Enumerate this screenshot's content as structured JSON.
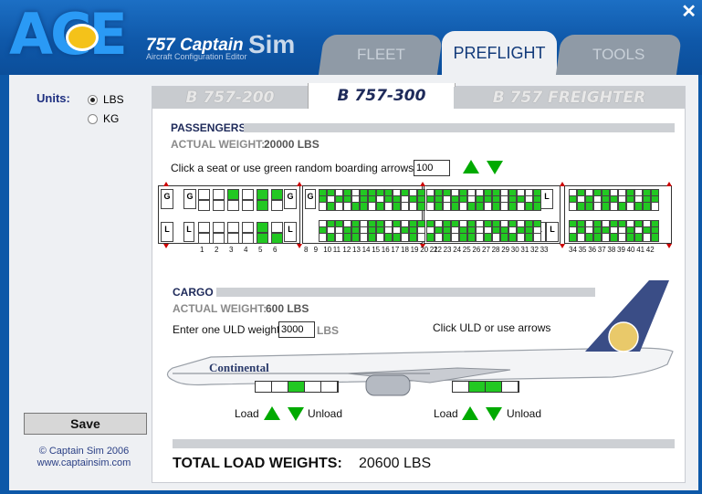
{
  "header": {
    "logo_text": "ACE",
    "brand_prefix": "757",
    "brand_name": "Captain",
    "brand_sim": "Sim",
    "brand_sub": "Aircraft Configuration Editor",
    "close": "✕"
  },
  "tabs": [
    {
      "label": "FLEET",
      "active": false
    },
    {
      "label": "PREFLIGHT",
      "active": true
    },
    {
      "label": "TOOLS",
      "active": false
    }
  ],
  "units": {
    "label": "Units:",
    "options": [
      {
        "label": "LBS",
        "selected": true
      },
      {
        "label": "KG",
        "selected": false
      }
    ]
  },
  "save_label": "Save",
  "copyright": "© Captain Sim 2006",
  "website": "www.captainsim.com",
  "model_tabs": [
    {
      "label": "B 757-200",
      "active": false
    },
    {
      "label": "B 757-300",
      "active": true
    },
    {
      "label": "B 757 FREIGHTER",
      "active": false
    }
  ],
  "passengers": {
    "title": "PASSENGERS",
    "weight_label": "ACTUAL WEIGHT:",
    "weight_value": "20000 LBS",
    "instruction": "Click a seat or use green random boarding arrows",
    "count": "100",
    "row_numbers_first": [
      "1",
      "2",
      "3",
      "4",
      "5",
      "6"
    ],
    "row_numbers_second": [
      "8",
      "9",
      "10",
      "11",
      "12",
      "13",
      "14",
      "15",
      "16",
      "17",
      "18",
      "19",
      "20",
      "21"
    ],
    "row_numbers_third": [
      "22",
      "23",
      "24",
      "25",
      "26",
      "27",
      "28",
      "29",
      "30",
      "31",
      "32",
      "33"
    ],
    "row_numbers_fourth": [
      "34",
      "35",
      "36",
      "37",
      "38",
      "39",
      "40",
      "41",
      "42"
    ],
    "galley_g": "G",
    "galley_l": "L"
  },
  "cargo": {
    "title": "CARGO",
    "weight_label": "ACTUAL WEIGHT:",
    "weight_value": "600 LBS",
    "uld_label": "Enter one ULD weight",
    "uld_value": "3000",
    "uld_unit": "LBS",
    "hint": "Click ULD or use arrows",
    "airline": "Continental",
    "fwd_hold": [
      0,
      0,
      1,
      0,
      0
    ],
    "aft_hold": [
      0,
      1,
      1,
      0
    ],
    "load_label": "Load",
    "unload_label": "Unload"
  },
  "total": {
    "label": "TOTAL LOAD WEIGHTS:",
    "value": "20600 LBS"
  },
  "colors": {
    "accent_blue": "#0d58a8",
    "seat_filled": "#22c822",
    "arrow_green": "#00aa00",
    "marker_red": "#cc0000"
  }
}
